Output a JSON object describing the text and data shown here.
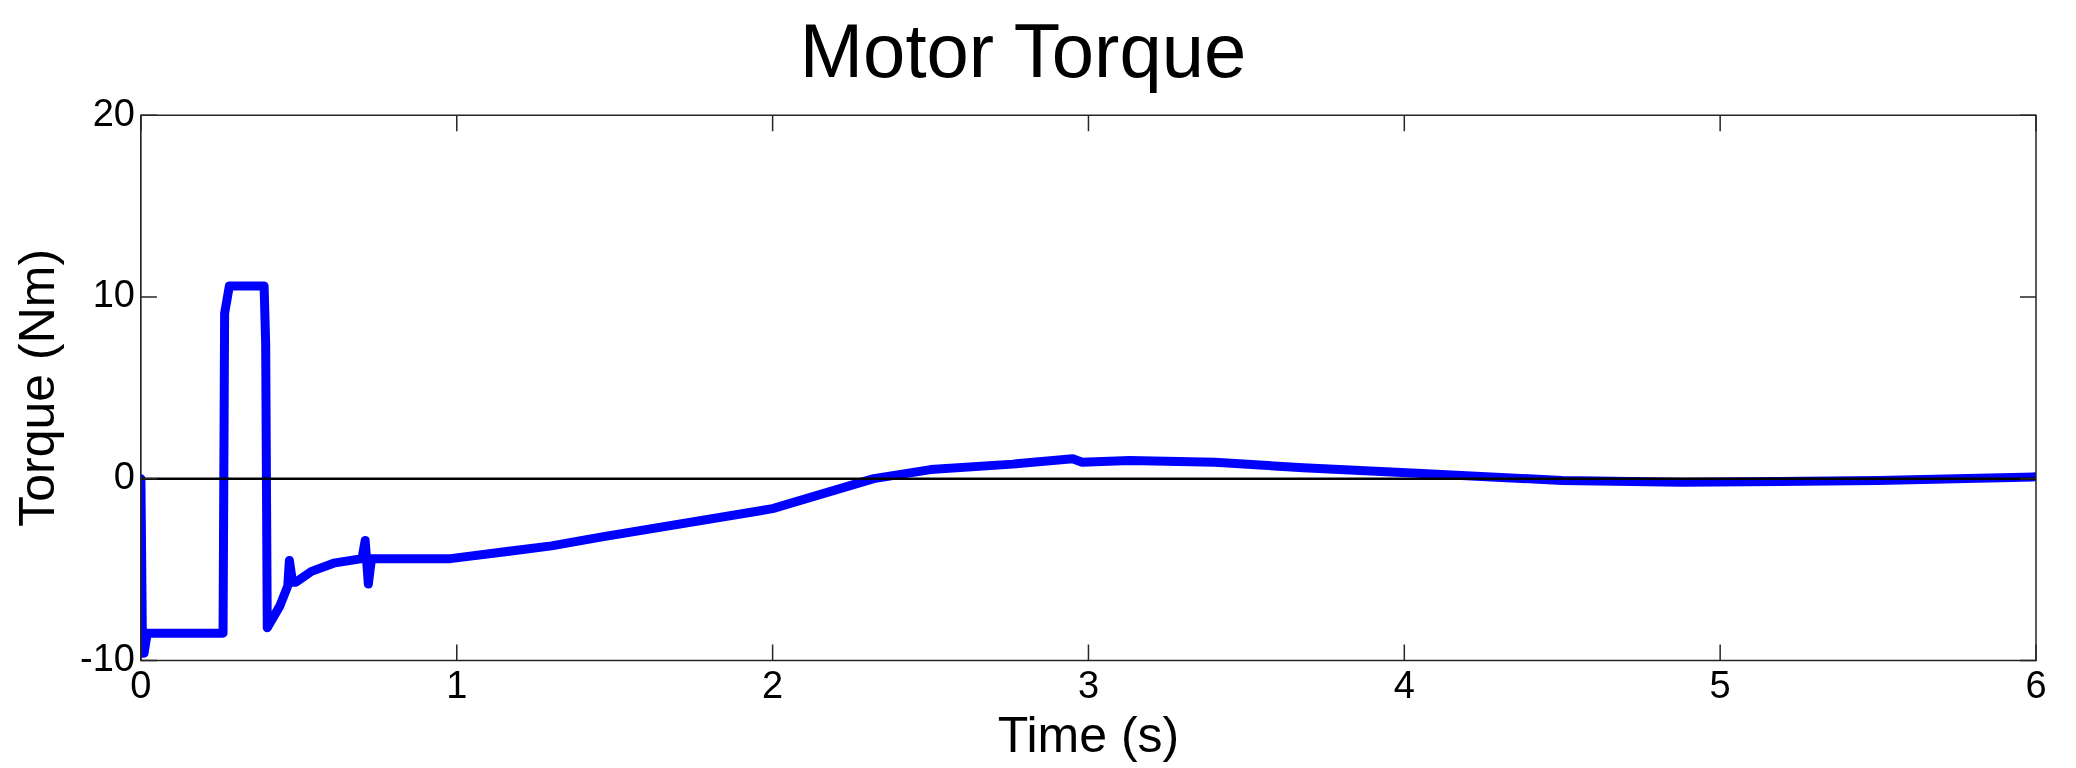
{
  "chart_data": {
    "type": "line",
    "title": "Motor Torque",
    "xlabel": "Time (s)",
    "ylabel": "Torque (Nm)",
    "xlim": [
      0,
      6
    ],
    "xticks": [
      0,
      1,
      2,
      3,
      4,
      5,
      6
    ],
    "ylim": [
      -10,
      20
    ],
    "yticks": [
      -10,
      0,
      10,
      20
    ],
    "grid": false,
    "legend": false,
    "marker": "none",
    "line_style": "solid",
    "ref_lines": [
      {
        "axis": "y",
        "value": 0,
        "color": "#000000"
      }
    ],
    "series": [
      {
        "color": "#0000ff",
        "x": [
          0,
          0.005,
          0.01,
          0.02,
          0.26,
          0.265,
          0.28,
          0.39,
          0.395,
          0.4,
          0.44,
          0.465,
          0.47,
          0.48,
          0.49,
          0.54,
          0.61,
          0.7,
          0.71,
          0.72,
          0.73,
          0.74,
          0.98,
          1.3,
          1.46,
          2.0,
          2.32,
          2.5,
          2.76,
          2.95,
          2.98,
          3.13,
          3.4,
          3.68,
          4.04,
          4.5,
          4.88,
          5.5,
          6.0
        ],
        "values": [
          0,
          -9.6,
          -9.6,
          -8.5,
          -8.5,
          9.1,
          10.6,
          10.6,
          7.4,
          -8.2,
          -7.0,
          -5.9,
          -4.5,
          -5.7,
          -5.7,
          -5.1,
          -4.65,
          -4.4,
          -3.4,
          -5.8,
          -4.4,
          -4.4,
          -4.4,
          -3.7,
          -3.2,
          -1.65,
          0,
          0.5,
          0.8,
          1.1,
          0.9,
          1.0,
          0.9,
          0.6,
          0.3,
          -0.1,
          -0.2,
          -0.1,
          0.1
        ]
      }
    ]
  }
}
